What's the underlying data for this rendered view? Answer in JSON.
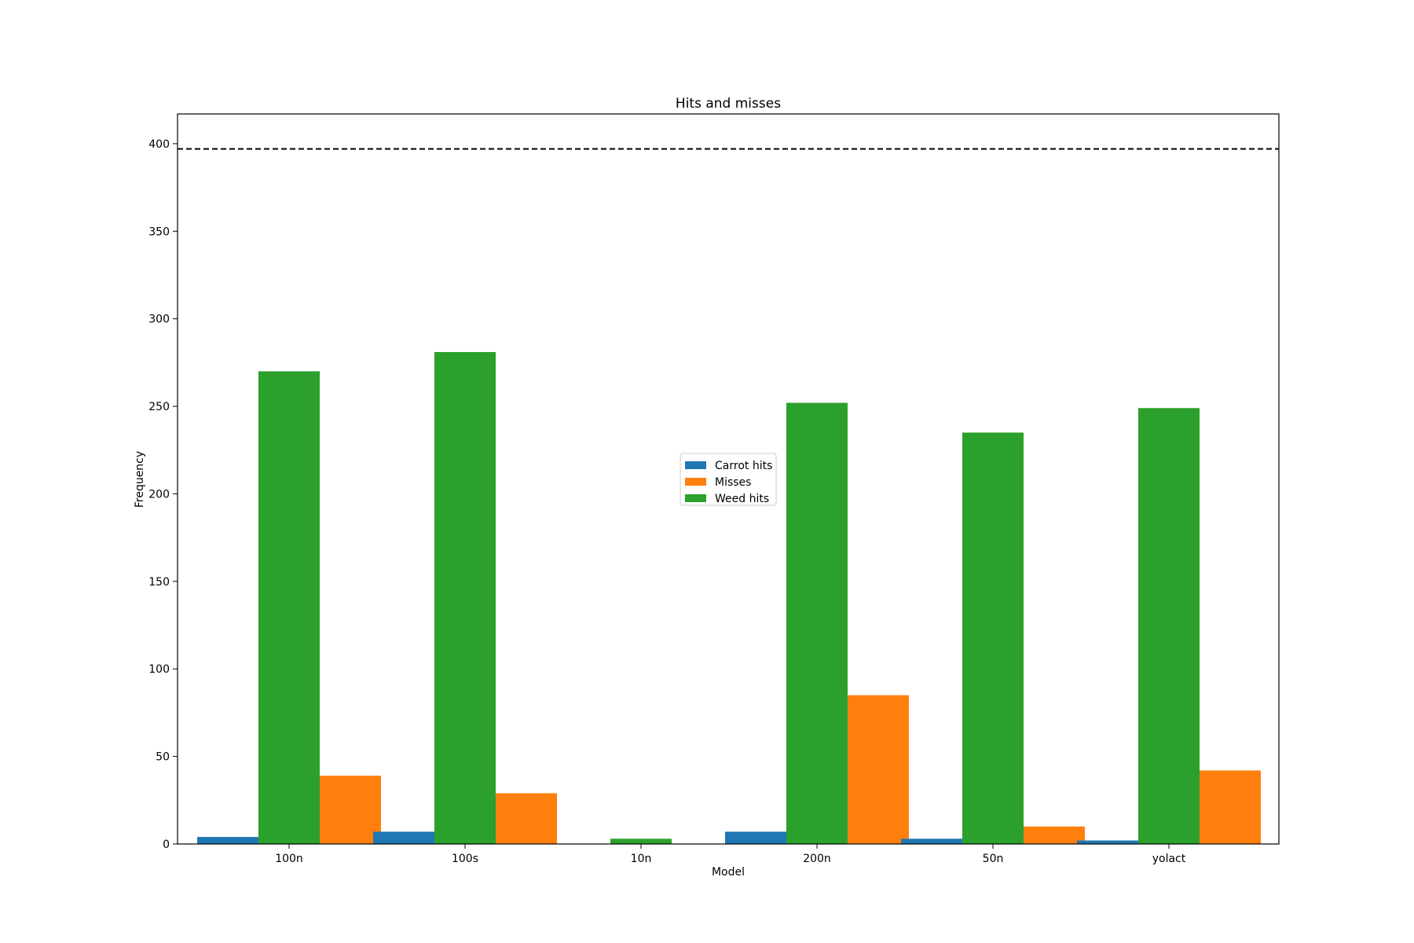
{
  "chart_data": {
    "type": "bar",
    "title": "Hits and misses",
    "xlabel": "Model",
    "ylabel": "Frequency",
    "categories": [
      "100n",
      "100s",
      "10n",
      "200n",
      "50n",
      "yolact"
    ],
    "series": [
      {
        "name": "Carrot hits",
        "color": "#1f77b4",
        "values": [
          4,
          7,
          0,
          7,
          3,
          2
        ]
      },
      {
        "name": "Weed hits",
        "color": "#2ca02c",
        "values": [
          270,
          281,
          3,
          252,
          235,
          249
        ]
      },
      {
        "name": "Misses",
        "color": "#ff7f0e",
        "values": [
          39,
          29,
          0,
          85,
          10,
          42
        ]
      }
    ],
    "legend_order": [
      "Carrot hits",
      "Misses",
      "Weed hits"
    ],
    "legend_position": "center",
    "reference_line": {
      "value": 397,
      "style": "dashed",
      "color": "#000000"
    },
    "ylim": [
      0,
      417
    ],
    "yticks": [
      0,
      50,
      100,
      150,
      200,
      250,
      300,
      350,
      400
    ],
    "grid": false
  }
}
